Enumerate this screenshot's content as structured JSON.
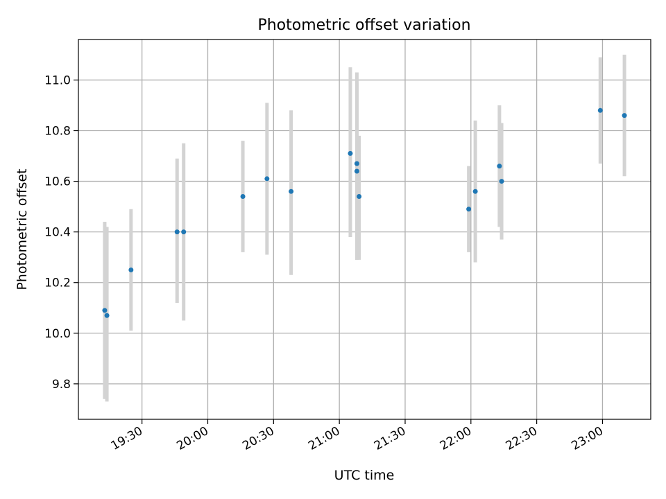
{
  "chart_data": {
    "type": "scatter",
    "title": "Photometric offset variation",
    "xlabel": "UTC time",
    "ylabel": "Photometric offset",
    "grid": true,
    "xlim": [
      "19:01",
      "23:22"
    ],
    "ylim": [
      9.66,
      11.16
    ],
    "x_ticks": [
      "19:30",
      "20:00",
      "20:30",
      "21:00",
      "21:30",
      "22:00",
      "22:30",
      "23:00"
    ],
    "y_ticks": [
      "9.8",
      "10.0",
      "10.2",
      "10.4",
      "10.6",
      "10.8",
      "11.0"
    ],
    "colors": {
      "point": "#1f77b4",
      "errorbar": "#d3d3d3",
      "grid": "#b0b0b0"
    },
    "points": [
      {
        "t": "19:13",
        "y": 10.09,
        "err_low": 9.74,
        "err_high": 10.44
      },
      {
        "t": "19:14",
        "y": 10.07,
        "err_low": 9.73,
        "err_high": 10.42
      },
      {
        "t": "19:25",
        "y": 10.25,
        "err_low": 10.01,
        "err_high": 10.49
      },
      {
        "t": "19:46",
        "y": 10.4,
        "err_low": 10.12,
        "err_high": 10.69
      },
      {
        "t": "19:49",
        "y": 10.4,
        "err_low": 10.05,
        "err_high": 10.75
      },
      {
        "t": "20:16",
        "y": 10.54,
        "err_low": 10.32,
        "err_high": 10.76
      },
      {
        "t": "20:27",
        "y": 10.61,
        "err_low": 10.31,
        "err_high": 10.91
      },
      {
        "t": "20:38",
        "y": 10.56,
        "err_low": 10.23,
        "err_high": 10.88
      },
      {
        "t": "21:05",
        "y": 10.71,
        "err_low": 10.38,
        "err_high": 11.05
      },
      {
        "t": "21:08",
        "y": 10.67,
        "err_low": 10.29,
        "err_high": 11.03
      },
      {
        "t": "21:08",
        "y": 10.64,
        "err_low": 10.29,
        "err_high": 10.99
      },
      {
        "t": "21:09",
        "y": 10.54,
        "err_low": 10.29,
        "err_high": 10.78
      },
      {
        "t": "21:59",
        "y": 10.49,
        "err_low": 10.32,
        "err_high": 10.66
      },
      {
        "t": "22:02",
        "y": 10.56,
        "err_low": 10.28,
        "err_high": 10.84
      },
      {
        "t": "22:13",
        "y": 10.66,
        "err_low": 10.42,
        "err_high": 10.9
      },
      {
        "t": "22:14",
        "y": 10.6,
        "err_low": 10.37,
        "err_high": 10.83
      },
      {
        "t": "22:59",
        "y": 10.88,
        "err_low": 10.67,
        "err_high": 11.09
      },
      {
        "t": "23:10",
        "y": 10.86,
        "err_low": 10.62,
        "err_high": 11.1
      }
    ]
  }
}
